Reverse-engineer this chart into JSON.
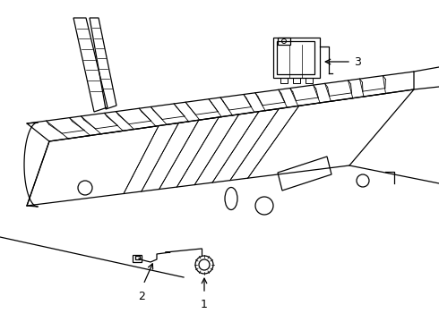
{
  "background_color": "#ffffff",
  "line_color": "#000000",
  "label_1": "1",
  "label_2": "2",
  "label_3": "3",
  "label_fontsize": 9,
  "fig_width": 4.9,
  "fig_height": 3.6,
  "dpi": 100
}
